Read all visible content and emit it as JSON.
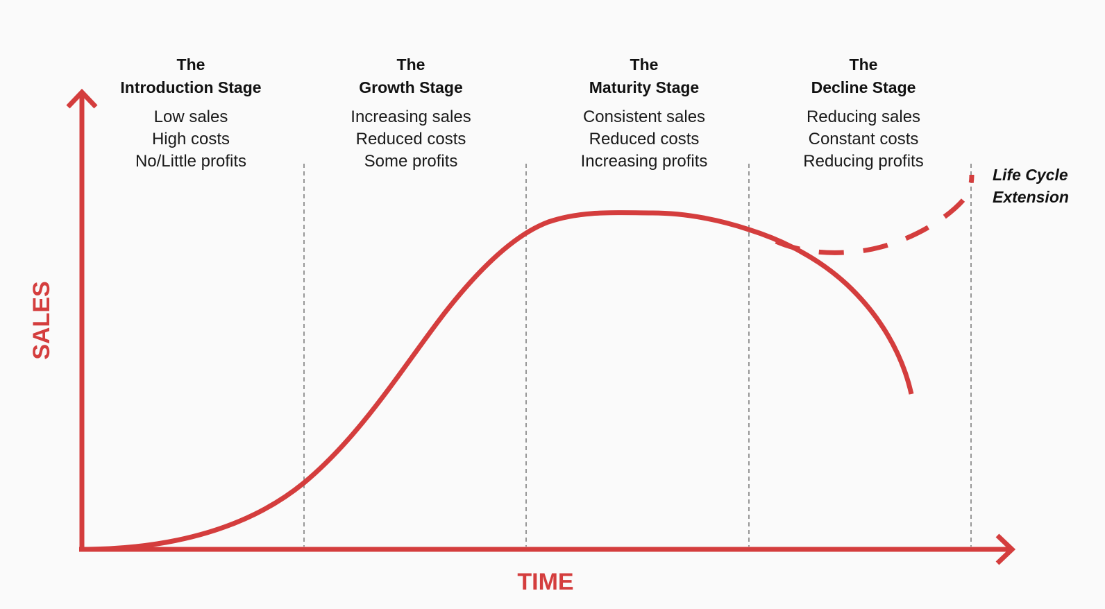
{
  "colors": {
    "accent": "#d43d3d",
    "divider": "#555555",
    "text": "#111111",
    "background": "#fafafa"
  },
  "axes": {
    "y_label": "SALES",
    "x_label": "TIME"
  },
  "stages": [
    {
      "title_line1": "The",
      "title_line2": "Introduction Stage",
      "desc": [
        "Low sales",
        "High costs",
        "No/Little profits"
      ]
    },
    {
      "title_line1": "The",
      "title_line2": "Growth Stage",
      "desc": [
        "Increasing sales",
        "Reduced costs",
        "Some profits"
      ]
    },
    {
      "title_line1": "The",
      "title_line2": "Maturity Stage",
      "desc": [
        "Consistent sales",
        "Reduced costs",
        "Increasing profits"
      ]
    },
    {
      "title_line1": "The",
      "title_line2": "Decline Stage",
      "desc": [
        "Reducing sales",
        "Constant costs",
        "Reducing profits"
      ]
    }
  ],
  "extension": {
    "line1": "Life Cycle",
    "line2": "Extension"
  }
}
